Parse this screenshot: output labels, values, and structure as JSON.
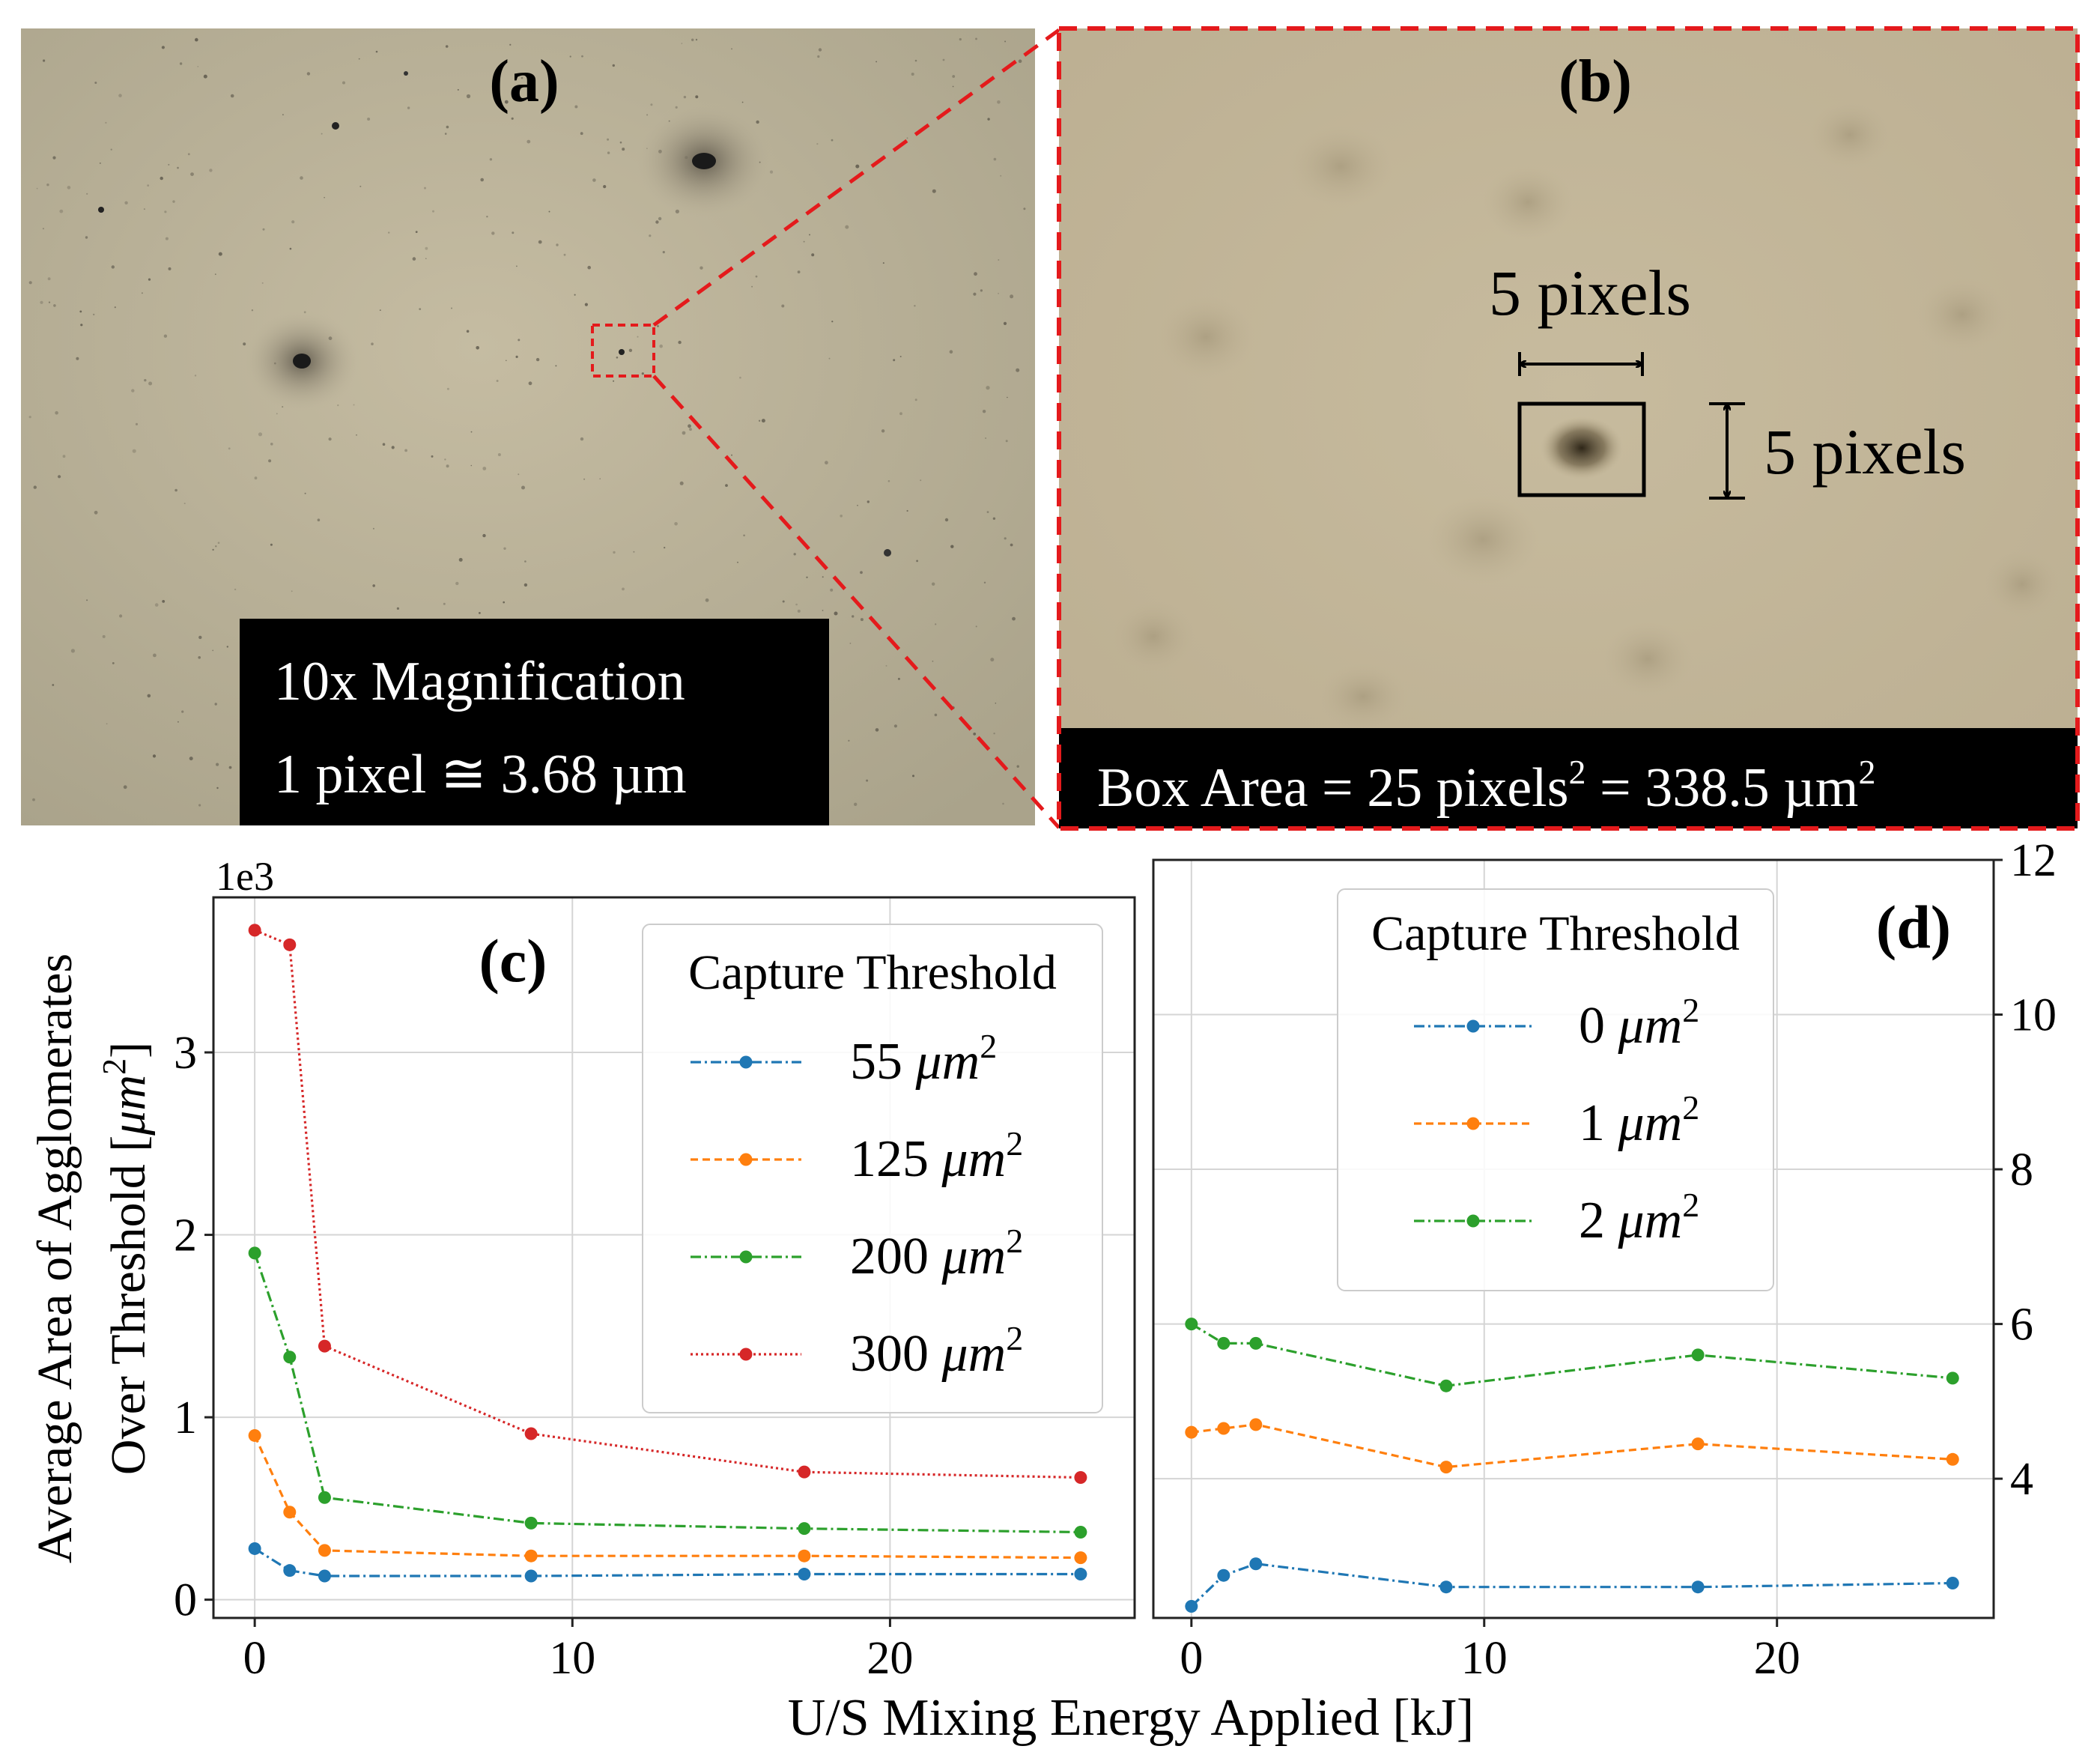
{
  "panel_a": {
    "label": "(a)",
    "caption_line1": "10x Magnification",
    "caption_line2": "1 pixel ≅ 3.68 µm"
  },
  "panel_b": {
    "label": "(b)",
    "width_label": "5 pixels",
    "height_label": "5 pixels",
    "caption_prefix": "Box Area = 25 pixels",
    "caption_sup1": "2",
    "caption_middle": " = 338.5 µm",
    "caption_sup2": "2"
  },
  "shared_xlabel": "U/S Mixing Energy Applied [kJ]",
  "chart_data": [
    {
      "id": "c",
      "type": "line",
      "label": "(c)",
      "ylabel_line1": "Average Area of Agglomerates",
      "ylabel_line2_prefix": "Over Threshold [",
      "ylabel_unit": "μm",
      "ylabel_sup": "2",
      "ylabel_suffix": "]",
      "y_scale_text": "1e3",
      "xlim": [
        -1.3,
        27.7
      ],
      "ylim": [
        -0.1,
        3.85
      ],
      "x_ticks": [
        0,
        10,
        20
      ],
      "y_ticks": [
        0,
        1,
        2,
        3
      ],
      "grid": true,
      "legend_title": "Capture Threshold",
      "legend_position": "upper right",
      "x": [
        0,
        1.1,
        2.2,
        8.7,
        17.3,
        26
      ],
      "series": [
        {
          "name": "55",
          "unit": "μm",
          "sup": "2",
          "color": "#1f77b4",
          "dash": "14 5 3 5",
          "values": [
            0.28,
            0.16,
            0.13,
            0.13,
            0.14,
            0.14
          ]
        },
        {
          "name": "125",
          "unit": "μm",
          "sup": "2",
          "color": "#ff7f0e",
          "dash": "10 6",
          "values": [
            0.9,
            0.48,
            0.27,
            0.24,
            0.24,
            0.23
          ]
        },
        {
          "name": "200",
          "unit": "μm",
          "sup": "2",
          "color": "#2ca02c",
          "dash": "14 5 3 5",
          "values": [
            1.9,
            1.33,
            0.56,
            0.42,
            0.39,
            0.37
          ]
        },
        {
          "name": "300",
          "unit": "μm",
          "sup": "2",
          "color": "#d62728",
          "dash": "3 4",
          "values": [
            3.67,
            3.59,
            1.39,
            0.91,
            0.7,
            0.67
          ]
        }
      ]
    },
    {
      "id": "d",
      "type": "line",
      "label": "(d)",
      "xlim": [
        -1.3,
        27.4
      ],
      "ylim": [
        2.2,
        12.0
      ],
      "x_ticks": [
        0,
        10,
        20
      ],
      "y_ticks": [
        4,
        6,
        8,
        10,
        12
      ],
      "y_axis_side": "right",
      "grid": true,
      "legend_title": "Capture Threshold",
      "legend_position": "upper center",
      "x": [
        0,
        1.1,
        2.2,
        8.7,
        17.3,
        26
      ],
      "series": [
        {
          "name": "0",
          "unit": "μm",
          "sup": "2",
          "color": "#1f77b4",
          "dash": "14 5 3 5",
          "values": [
            2.35,
            2.75,
            2.9,
            2.6,
            2.6,
            2.65
          ]
        },
        {
          "name": "1",
          "unit": "μm",
          "sup": "2",
          "color": "#ff7f0e",
          "dash": "10 6",
          "values": [
            4.6,
            4.65,
            4.7,
            4.15,
            4.45,
            4.25
          ]
        },
        {
          "name": "2",
          "unit": "μm",
          "sup": "2",
          "color": "#2ca02c",
          "dash": "14 5 3 5",
          "values": [
            6.0,
            5.75,
            5.75,
            5.2,
            5.6,
            5.3
          ]
        }
      ]
    }
  ]
}
